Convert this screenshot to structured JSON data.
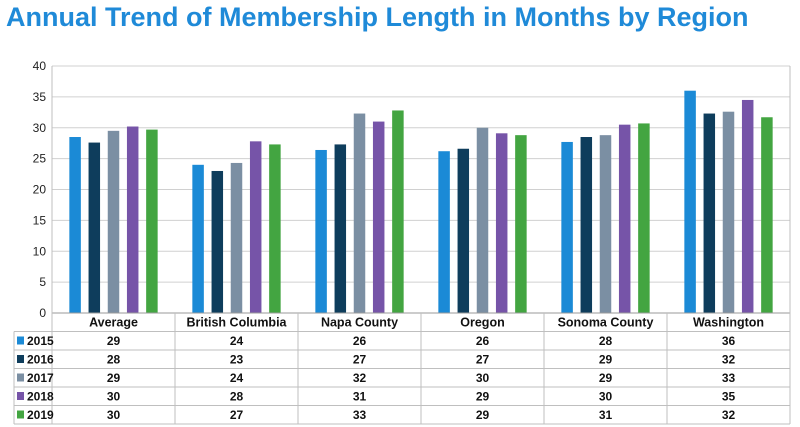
{
  "title": "Annual Trend of Membership Length in Months by Region",
  "chart_data": {
    "type": "bar",
    "title": "Annual Trend of Membership Length in Months by Region",
    "categories": [
      "Average",
      "British Columbia",
      "Napa County",
      "Oregon",
      "Sonoma County",
      "Washington"
    ],
    "series": [
      {
        "name": "2015",
        "color": "#1b8ad6",
        "values": [
          28.5,
          24.0,
          26.4,
          26.2,
          27.7,
          36.0
        ],
        "labels": [
          "29",
          "24",
          "26",
          "26",
          "28",
          "36"
        ]
      },
      {
        "name": "2016",
        "color": "#0e3d5c",
        "values": [
          27.6,
          23.0,
          27.3,
          26.6,
          28.5,
          32.3
        ],
        "labels": [
          "28",
          "23",
          "27",
          "27",
          "29",
          "32"
        ]
      },
      {
        "name": "2017",
        "color": "#7b8fa3",
        "values": [
          29.5,
          24.3,
          32.3,
          30.0,
          28.8,
          32.6
        ],
        "labels": [
          "29",
          "24",
          "32",
          "30",
          "29",
          "33"
        ]
      },
      {
        "name": "2018",
        "color": "#7654a8",
        "values": [
          30.2,
          27.8,
          31.0,
          29.1,
          30.5,
          34.5
        ],
        "labels": [
          "30",
          "28",
          "31",
          "29",
          "30",
          "35"
        ]
      },
      {
        "name": "2019",
        "color": "#43a541",
        "values": [
          29.7,
          27.3,
          32.8,
          28.8,
          30.7,
          31.7
        ],
        "labels": [
          "30",
          "27",
          "33",
          "29",
          "31",
          "32"
        ]
      }
    ],
    "ylim": [
      0,
      40
    ],
    "yticks": [
      "0",
      "5",
      "10",
      "15",
      "20",
      "25",
      "30",
      "35",
      "40"
    ],
    "grid": true,
    "legend": "data-table-left"
  }
}
